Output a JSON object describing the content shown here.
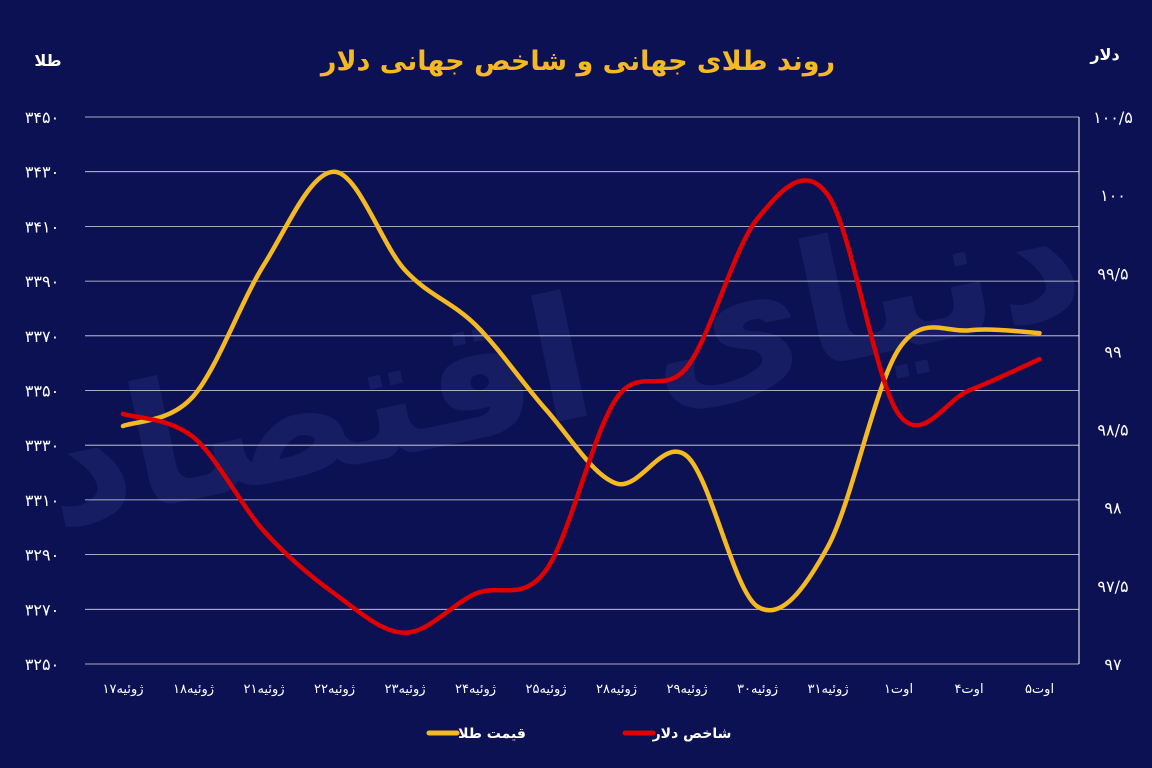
{
  "chart_data": {
    "type": "line",
    "title": "روند طلای جهانی و شاخص جهانی دلار",
    "ylabel_left": "طلا",
    "ylabel_right": "دلار",
    "categories": [
      "۱۷ژوئیه",
      "۱۸ژوئیه",
      "۲۱ژوئیه",
      "۲۲ژوئیه",
      "۲۳ژوئیه",
      "۲۴ژوئیه",
      "۲۵ژوئیه",
      "۲۸ژوئیه",
      "۲۹ژوئیه",
      "۳۰ژوئیه",
      "۳۱ژوئیه",
      "۱اوت",
      "۴اوت",
      "۵اوت"
    ],
    "left_axis": {
      "ylim": [
        3250,
        3450
      ],
      "ticks": [
        3250,
        3270,
        3290,
        3310,
        3330,
        3350,
        3370,
        3390,
        3410,
        3430,
        3450
      ],
      "tick_labels": [
        "۳۲۵۰",
        "۳۲۷۰",
        "۳۲۹۰",
        "۳۳۱۰",
        "۳۳۳۰",
        "۳۳۵۰",
        "۳۳۷۰",
        "۳۳۹۰",
        "۳۴۱۰",
        "۳۴۳۰",
        "۳۴۵۰"
      ]
    },
    "right_axis": {
      "ylim": [
        97,
        100.5
      ],
      "ticks": [
        97,
        97.5,
        98,
        98.5,
        99,
        99.5,
        100,
        100.5
      ],
      "tick_labels": [
        "۹۷",
        "۹۷/۵",
        "۹۸",
        "۹۸/۵",
        "۹۹",
        "۹۹/۵",
        "۱۰۰",
        "۱۰۰/۵"
      ]
    },
    "series": [
      {
        "name": "قیمت طلا",
        "color": "#f5b921",
        "axis": "left",
        "values": [
          3337,
          3348,
          3396,
          3430,
          3394,
          3374,
          3343,
          3316,
          3326,
          3271,
          3293,
          3365,
          3372,
          3371
        ]
      },
      {
        "name": "شاخص دلار",
        "color": "#e00000",
        "axis": "right",
        "values": [
          98.6,
          98.45,
          97.85,
          97.45,
          97.2,
          97.45,
          97.6,
          98.7,
          98.9,
          99.85,
          100.0,
          98.6,
          98.75,
          98.95
        ]
      }
    ],
    "grid": true,
    "legend": "bottom-center"
  },
  "watermark": "دنیای اقتصاد"
}
